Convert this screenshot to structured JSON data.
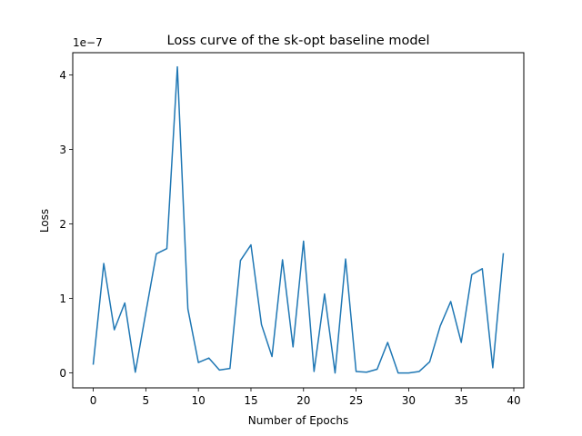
{
  "chart_data": {
    "type": "line",
    "title": "Loss curve of the sk-opt baseline model",
    "xlabel": "Number of Epochs",
    "ylabel": "Loss",
    "y_offset_label": "1e−7",
    "xlim": [
      -1.95,
      40.95
    ],
    "ylim": [
      -0.2,
      4.3
    ],
    "x_ticks": [
      0,
      5,
      10,
      15,
      20,
      25,
      30,
      35,
      40
    ],
    "y_ticks": [
      0,
      1,
      2,
      3,
      4
    ],
    "grid": false,
    "line_color": "#1f77b4",
    "series": [
      {
        "x": [
          0,
          1,
          2,
          3,
          4,
          5,
          6,
          7,
          8,
          9,
          10,
          11,
          12,
          13,
          14,
          15,
          16,
          17,
          18,
          19,
          20,
          21,
          22,
          23,
          24,
          25,
          26,
          27,
          28,
          29,
          30,
          31,
          32,
          33,
          34,
          35,
          36,
          37,
          38,
          39
        ],
        "values": [
          0.12,
          1.47,
          0.58,
          0.94,
          0.01,
          0.81,
          1.6,
          1.67,
          4.11,
          0.86,
          0.14,
          0.2,
          0.04,
          0.06,
          1.51,
          1.72,
          0.65,
          0.22,
          1.52,
          0.35,
          1.77,
          0.02,
          1.06,
          0.0,
          1.53,
          0.02,
          0.01,
          0.05,
          0.41,
          0.0,
          0.0,
          0.02,
          0.15,
          0.63,
          0.96,
          0.41,
          1.32,
          1.4,
          0.07,
          1.6
        ]
      }
    ]
  }
}
